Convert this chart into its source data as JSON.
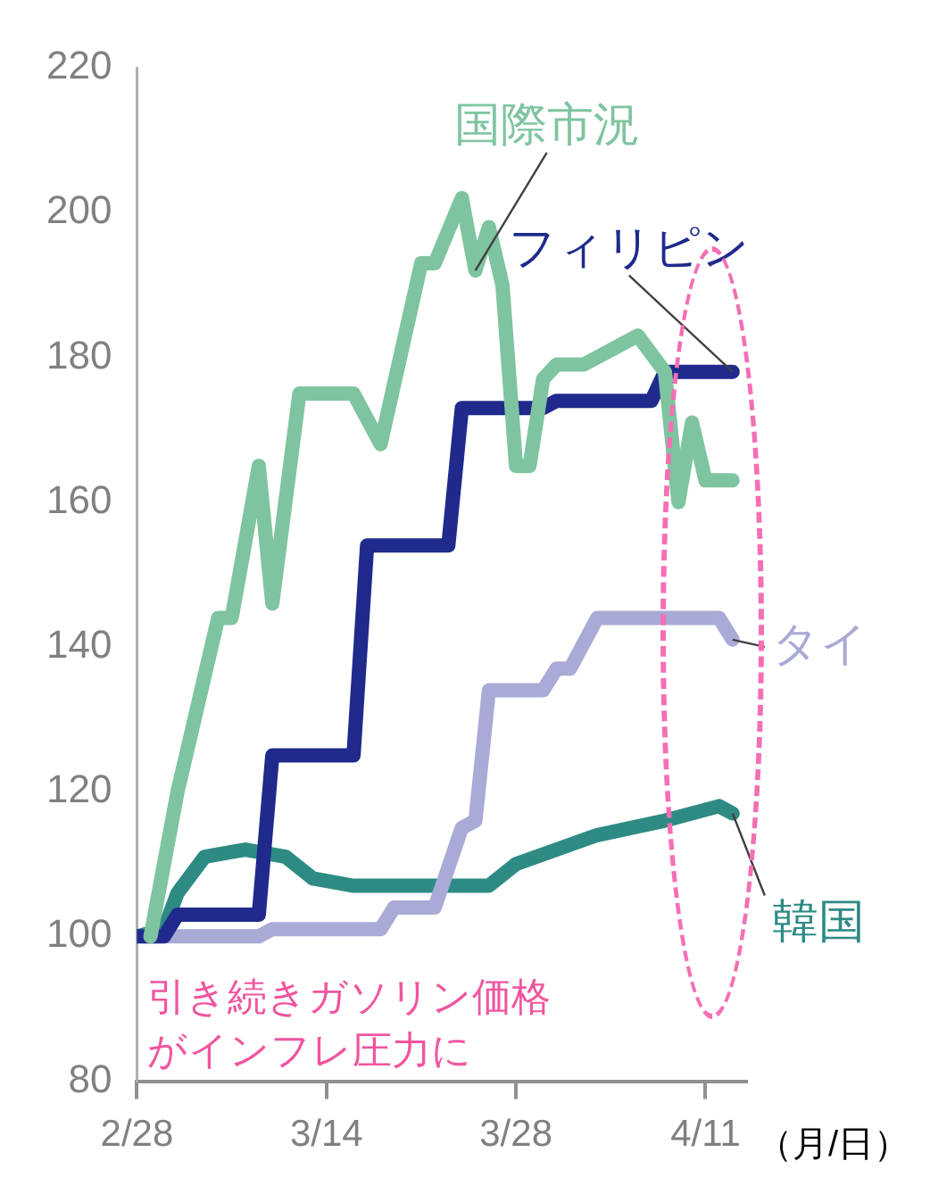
{
  "chart_data": {
    "type": "line",
    "xlabel": "（月/日）",
    "xlim": [
      "--02-28",
      "--04-14"
    ],
    "xticks": [
      {
        "value": "--02-28",
        "label": "2/28"
      },
      {
        "value": "--03-14",
        "label": "3/14"
      },
      {
        "value": "--03-28",
        "label": "3/28"
      },
      {
        "value": "--04-11",
        "label": "4/11"
      }
    ],
    "ylim": [
      80,
      220
    ],
    "yticks": [
      80,
      100,
      120,
      140,
      160,
      180,
      200,
      220
    ],
    "grid": false,
    "legend": false,
    "marker": "none",
    "line_style": "solid",
    "series": [
      {
        "name": "国際市況",
        "color": "#7fc4a0",
        "x": [
          "--03-01",
          "--03-02",
          "--03-03",
          "--03-04",
          "--03-06",
          "--03-07",
          "--03-09",
          "--03-10",
          "--03-12",
          "--03-16",
          "--03-18",
          "--03-21",
          "--03-22",
          "--03-24",
          "--03-25",
          "--03-26",
          "--03-27",
          "--03-28",
          "--03-29",
          "--03-30",
          "--03-31",
          "--04-02",
          "--04-06",
          "--04-08",
          "--04-09",
          "--04-10",
          "--04-11",
          "--04-13"
        ],
        "values": [
          100,
          110,
          120,
          128,
          144,
          144,
          165,
          146,
          175,
          175,
          168,
          193,
          193,
          202,
          192,
          198,
          190,
          165,
          165,
          177,
          179,
          179,
          183,
          178,
          160,
          171,
          163,
          163
        ]
      },
      {
        "name": "フィリピン",
        "color": "#1f2a8c",
        "x": [
          "--02-28",
          "--03-02",
          "--03-03",
          "--03-09",
          "--03-10",
          "--03-16",
          "--03-17",
          "--03-23",
          "--03-24",
          "--03-30",
          "--03-31",
          "--04-07",
          "--04-08",
          "--04-13"
        ],
        "values": [
          100,
          100,
          103,
          103,
          125,
          125,
          154,
          154,
          173,
          173,
          174,
          174,
          178,
          178
        ]
      },
      {
        "name": "タイ",
        "color": "#a9aad6",
        "x": [
          "--02-28",
          "--03-09",
          "--03-10",
          "--03-18",
          "--03-19",
          "--03-22",
          "--03-24",
          "--03-25",
          "--03-26",
          "--03-30",
          "--03-31",
          "--04-01",
          "--04-03",
          "--04-12",
          "--04-13"
        ],
        "values": [
          100,
          100,
          101,
          101,
          104,
          104,
          115,
          116,
          134,
          134,
          137,
          137,
          144,
          144,
          141
        ]
      },
      {
        "name": "韓国",
        "color": "#2e8b84",
        "x": [
          "--02-28",
          "--03-02",
          "--03-03",
          "--03-05",
          "--03-08",
          "--03-11",
          "--03-13",
          "--03-16",
          "--03-19",
          "--03-26",
          "--03-28",
          "--04-03",
          "--04-08",
          "--04-12",
          "--04-13"
        ],
        "values": [
          100,
          101,
          106,
          111,
          112,
          111,
          108,
          107,
          107,
          107,
          110,
          114,
          116,
          118,
          117
        ]
      }
    ],
    "annotations": [
      "引き続きガソリン価格がインフレ圧力に"
    ]
  }
}
